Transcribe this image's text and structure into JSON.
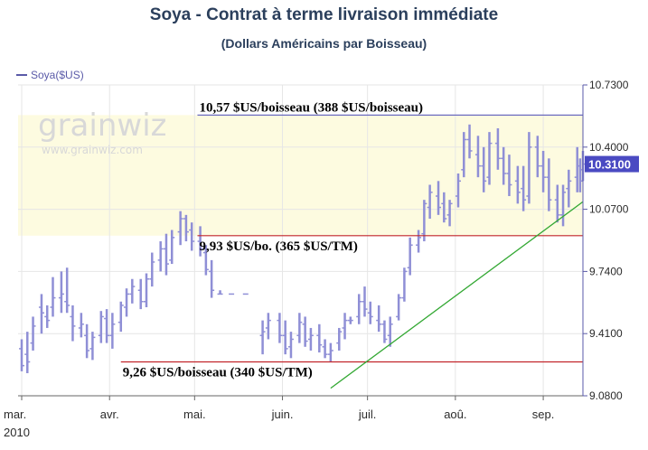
{
  "chart_data": {
    "type": "ohlc",
    "title": "Soya - Contrat à terme livraison immédiate",
    "subtitle": "(Dollars Américains par Boisseau)",
    "legend": "Soya($US)",
    "watermark": "grainwiz",
    "watermark_sub": "www.grainwiz.com",
    "ylim": [
      9.08,
      10.73
    ],
    "yticks": [
      "10.7300",
      "10.4000",
      "10.0700",
      "9.7400",
      "9.4100",
      "9.0800"
    ],
    "yticks_values": [
      10.73,
      10.4,
      10.07,
      9.74,
      9.41,
      9.08
    ],
    "last_price_label": "10.3100",
    "last_price": 10.31,
    "x_month_labels": [
      "mar.",
      "avr.",
      "mai.",
      "juin.",
      "juil.",
      "aoû.",
      "sep."
    ],
    "year_label": "2010",
    "date_range": [
      "2010-03-01",
      "2010-09-15"
    ],
    "bands": [
      {
        "from": 9.93,
        "to": 10.57,
        "color": "#fdfbe0"
      }
    ],
    "levels": [
      {
        "value": 10.57,
        "label": "10,57 $US/boisseau (388 $US/boisseau)",
        "color": "#6b6bbf",
        "start": "2010-05-02"
      },
      {
        "value": 9.93,
        "label": "9,93 $US/bo. (365 $US/TM)",
        "color": "#c2242a",
        "start": "2010-05-02"
      },
      {
        "value": 9.26,
        "label": "9,26 $US/boisseau (340 $US/TM)",
        "color": "#c2242a",
        "start": "2010-04-05"
      }
    ],
    "trendline": {
      "color": "#33a833",
      "points": [
        [
          "2010-06-18",
          9.12
        ],
        [
          "2010-09-15",
          10.11
        ]
      ]
    },
    "series_color": "#8f8fd6",
    "ohlc": [
      [
        "2010-03-01",
        9.33,
        9.38,
        9.21,
        9.24
      ],
      [
        "2010-03-03",
        9.3,
        9.42,
        9.2,
        9.26
      ],
      [
        "2010-03-05",
        9.36,
        9.5,
        9.32,
        9.45
      ],
      [
        "2010-03-08",
        9.55,
        9.62,
        9.41,
        9.52
      ],
      [
        "2010-03-10",
        9.5,
        9.56,
        9.44,
        9.48
      ],
      [
        "2010-03-12",
        9.55,
        9.71,
        9.5,
        9.6
      ],
      [
        "2010-03-15",
        9.6,
        9.74,
        9.52,
        9.62
      ],
      [
        "2010-03-17",
        9.58,
        9.76,
        9.52,
        9.56
      ],
      [
        "2010-03-19",
        9.5,
        9.56,
        9.37,
        9.45
      ],
      [
        "2010-03-22",
        9.44,
        9.52,
        9.39,
        9.46
      ],
      [
        "2010-03-24",
        9.4,
        9.46,
        9.28,
        9.32
      ],
      [
        "2010-03-26",
        9.33,
        9.42,
        9.27,
        9.39
      ],
      [
        "2010-03-29",
        9.4,
        9.53,
        9.36,
        9.5
      ],
      [
        "2010-03-31",
        9.49,
        9.54,
        9.36,
        9.4
      ],
      [
        "2010-04-02",
        9.4,
        9.52,
        9.33,
        9.46
      ],
      [
        "2010-04-05",
        9.47,
        9.58,
        9.42,
        9.56
      ],
      [
        "2010-04-07",
        9.55,
        9.65,
        9.5,
        9.62
      ],
      [
        "2010-04-09",
        9.62,
        9.7,
        9.57,
        9.66
      ],
      [
        "2010-04-12",
        9.64,
        9.7,
        9.54,
        9.58
      ],
      [
        "2010-04-14",
        9.58,
        9.73,
        9.55,
        9.7
      ],
      [
        "2010-04-16",
        9.7,
        9.84,
        9.66,
        9.79
      ],
      [
        "2010-04-19",
        9.8,
        9.9,
        9.74,
        9.86
      ],
      [
        "2010-04-21",
        9.86,
        9.94,
        9.72,
        9.78
      ],
      [
        "2010-04-23",
        9.8,
        9.96,
        9.78,
        9.92
      ],
      [
        "2010-04-26",
        9.95,
        10.06,
        9.88,
        10.02
      ],
      [
        "2010-04-28",
        10.02,
        10.04,
        9.9,
        9.95
      ],
      [
        "2010-04-30",
        9.96,
        10.0,
        9.85,
        9.9
      ],
      [
        "2010-05-03",
        9.9,
        9.98,
        9.82,
        9.86
      ],
      [
        "2010-05-05",
        9.84,
        9.88,
        9.72,
        9.75
      ],
      [
        "2010-05-07",
        9.74,
        9.8,
        9.6,
        9.64
      ],
      [
        "2010-05-10",
        9.62,
        9.64,
        9.62,
        9.62
      ],
      [
        "2010-05-14",
        9.62,
        9.62,
        9.62,
        9.62
      ],
      [
        "2010-05-19",
        9.62,
        9.62,
        9.62,
        9.62
      ],
      [
        "2010-05-25",
        9.4,
        9.48,
        9.3,
        9.42
      ],
      [
        "2010-05-27",
        9.44,
        9.52,
        9.38,
        9.48
      ],
      [
        "2010-05-31",
        9.48,
        9.52,
        9.36,
        9.4
      ],
      [
        "2010-06-02",
        9.4,
        9.48,
        9.3,
        9.33
      ],
      [
        "2010-06-04",
        9.34,
        9.42,
        9.28,
        9.38
      ],
      [
        "2010-06-07",
        9.4,
        9.52,
        9.36,
        9.47
      ],
      [
        "2010-06-09",
        9.46,
        9.5,
        9.34,
        9.37
      ],
      [
        "2010-06-11",
        9.38,
        9.44,
        9.32,
        9.4
      ],
      [
        "2010-06-14",
        9.4,
        9.46,
        9.31,
        9.35
      ],
      [
        "2010-06-16",
        9.34,
        9.38,
        9.28,
        9.3
      ],
      [
        "2010-06-18",
        9.3,
        9.36,
        9.26,
        9.32
      ],
      [
        "2010-06-21",
        9.36,
        9.44,
        9.32,
        9.42
      ],
      [
        "2010-06-23",
        9.44,
        9.52,
        9.38,
        9.48
      ],
      [
        "2010-06-25",
        9.48,
        9.5,
        9.46,
        9.48
      ],
      [
        "2010-06-28",
        9.5,
        9.62,
        9.46,
        9.58
      ],
      [
        "2010-06-30",
        9.58,
        9.66,
        9.5,
        9.54
      ],
      [
        "2010-07-02",
        9.52,
        9.58,
        9.46,
        9.5
      ],
      [
        "2010-07-05",
        9.48,
        9.56,
        9.42,
        9.46
      ],
      [
        "2010-07-07",
        9.46,
        9.48,
        9.36,
        9.38
      ],
      [
        "2010-07-09",
        9.4,
        9.5,
        9.34,
        9.46
      ],
      [
        "2010-07-12",
        9.5,
        9.62,
        9.48,
        9.6
      ],
      [
        "2010-07-14",
        9.6,
        9.76,
        9.58,
        9.74
      ],
      [
        "2010-07-16",
        9.76,
        9.92,
        9.72,
        9.88
      ],
      [
        "2010-07-19",
        9.88,
        9.96,
        9.84,
        9.92
      ],
      [
        "2010-07-21",
        9.94,
        10.12,
        9.9,
        10.1
      ],
      [
        "2010-07-23",
        10.08,
        10.2,
        10.02,
        10.16
      ],
      [
        "2010-07-26",
        10.14,
        10.22,
        10.04,
        10.08
      ],
      [
        "2010-07-28",
        10.1,
        10.16,
        10.0,
        10.02
      ],
      [
        "2010-07-30",
        10.04,
        10.12,
        9.98,
        10.1
      ],
      [
        "2010-08-02",
        10.14,
        10.26,
        10.08,
        10.22
      ],
      [
        "2010-08-04",
        10.28,
        10.48,
        10.24,
        10.44
      ],
      [
        "2010-08-06",
        10.44,
        10.52,
        10.34,
        10.38
      ],
      [
        "2010-08-09",
        10.36,
        10.46,
        10.24,
        10.3
      ],
      [
        "2010-08-11",
        10.3,
        10.4,
        10.16,
        10.22
      ],
      [
        "2010-08-13",
        10.24,
        10.48,
        10.2,
        10.42
      ],
      [
        "2010-08-16",
        10.42,
        10.5,
        10.28,
        10.34
      ],
      [
        "2010-08-18",
        10.34,
        10.4,
        10.2,
        10.26
      ],
      [
        "2010-08-20",
        10.26,
        10.36,
        10.14,
        10.2
      ],
      [
        "2010-08-23",
        10.22,
        10.3,
        10.1,
        10.16
      ],
      [
        "2010-08-25",
        10.18,
        10.3,
        10.06,
        10.12
      ],
      [
        "2010-08-27",
        10.14,
        10.48,
        10.1,
        10.4
      ],
      [
        "2010-08-30",
        10.4,
        10.46,
        10.24,
        10.3
      ],
      [
        "2010-09-01",
        10.3,
        10.38,
        10.16,
        10.24
      ],
      [
        "2010-09-03",
        10.24,
        10.34,
        10.06,
        10.12
      ],
      [
        "2010-09-06",
        10.12,
        10.2,
        10.0,
        10.04
      ],
      [
        "2010-09-08",
        10.04,
        10.2,
        9.98,
        10.16
      ],
      [
        "2010-09-10",
        10.18,
        10.28,
        10.08,
        10.22
      ],
      [
        "2010-09-13",
        10.24,
        10.4,
        10.16,
        10.3
      ],
      [
        "2010-09-14",
        10.3,
        10.34,
        10.16,
        10.22
      ],
      [
        "2010-09-15",
        10.28,
        10.38,
        10.22,
        10.31
      ]
    ]
  }
}
